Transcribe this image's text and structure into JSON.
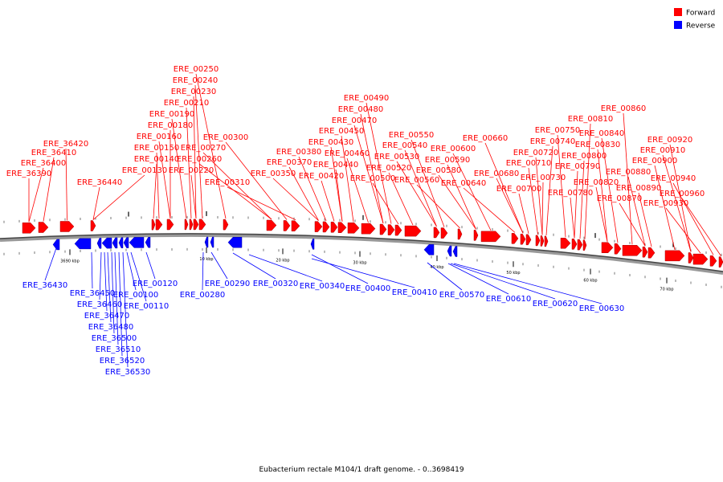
{
  "legend": {
    "forward": {
      "label": "Forward",
      "color": "#ff0000"
    },
    "reverse": {
      "label": "Reverse",
      "color": "#0000ff"
    }
  },
  "caption": "Eubacterium rectale M104/1 draft genome. - 0..3698419",
  "ticks": [
    "3690 kbp",
    "10 kbp",
    "20 kbp",
    "30 kbp",
    "40 kbp",
    "50 kbp",
    "60 kbp",
    "70 kbp"
  ],
  "forward_labels": [
    "ERE_36390",
    "ERE_36400",
    "ERE_36410",
    "ERE_36420",
    "ERE_36440",
    "ERE_00130",
    "ERE_00140",
    "ERE_00150",
    "ERE_00160",
    "ERE_00180",
    "ERE_00190",
    "ERE_00210",
    "ERE_00220",
    "ERE_00230",
    "ERE_00240",
    "ERE_00250",
    "ERE_00260",
    "ERE_00270",
    "ERE_00300",
    "ERE_00310",
    "ERE_00350",
    "ERE_00370",
    "ERE_00380",
    "ERE_00420",
    "ERE_00430",
    "ERE_00440",
    "ERE_00450",
    "ERE_00460",
    "ERE_00470",
    "ERE_00480",
    "ERE_00490",
    "ERE_00500",
    "ERE_00520",
    "ERE_00530",
    "ERE_00540",
    "ERE_00550",
    "ERE_00560",
    "ERE_00580",
    "ERE_00590",
    "ERE_00600",
    "ERE_00640",
    "ERE_00660",
    "ERE_00680",
    "ERE_00700",
    "ERE_00710",
    "ERE_00720",
    "ERE_00730",
    "ERE_00740",
    "ERE_00750",
    "ERE_00780",
    "ERE_00790",
    "ERE_00800",
    "ERE_00810",
    "ERE_00820",
    "ERE_00830",
    "ERE_00840",
    "ERE_00860",
    "ERE_00870",
    "ERE_00880",
    "ERE_00890",
    "ERE_00900",
    "ERE_00910",
    "ERE_00920",
    "ERE_00930",
    "ERE_00940",
    "ERE_00960"
  ],
  "reverse_labels": [
    "ERE_36430",
    "ERE_36450",
    "ERE_36460",
    "ERE_36470",
    "ERE_36480",
    "ERE_36500",
    "ERE_36510",
    "ERE_36520",
    "ERE_36530",
    "ERE_00100",
    "ERE_00110",
    "ERE_00120",
    "ERE_00280",
    "ERE_00290",
    "ERE_00320",
    "ERE_00340",
    "ERE_00400",
    "ERE_00410",
    "ERE_00570",
    "ERE_00610",
    "ERE_00620",
    "ERE_00630"
  ]
}
